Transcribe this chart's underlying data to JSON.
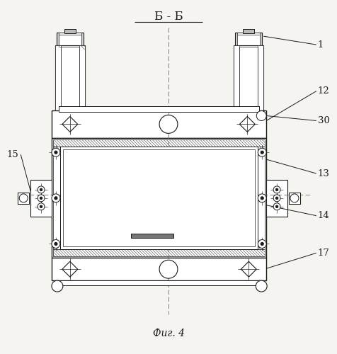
{
  "title_top": "Б - Б",
  "title_bottom": "Фиг. 4",
  "bg_color": "#f5f4f0",
  "line_color": "#1a1a1a",
  "fig_width": 4.77,
  "fig_height": 5.0,
  "dpi": 100
}
